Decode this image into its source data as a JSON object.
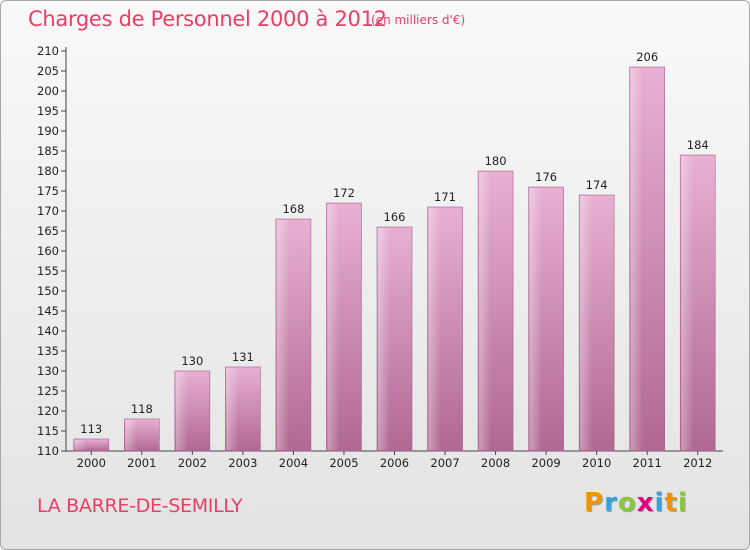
{
  "title": "Charges de Personnel 2000 à 2012",
  "subtitle": "(en milliers d'€)",
  "city": "LA BARRE-DE-SEMILLY",
  "logo": {
    "letters": [
      "P",
      "r",
      "o",
      "x",
      "i",
      "t",
      "i"
    ],
    "colors": [
      "#f39200",
      "#3aa0d8",
      "#8cc63f",
      "#e5007e",
      "#3aa0d8",
      "#f39200",
      "#8cc63f"
    ]
  },
  "colors": {
    "bar": "#d98fbd",
    "bar_light": "#e8b0d3",
    "bar_dark": "#b06892",
    "accent": "#ea3e64"
  },
  "chart_data": {
    "type": "bar",
    "title": "Charges de Personnel 2000 à 2012",
    "categories": [
      "2000",
      "2001",
      "2002",
      "2003",
      "2004",
      "2005",
      "2006",
      "2007",
      "2008",
      "2009",
      "2010",
      "2011",
      "2012"
    ],
    "values": [
      113,
      118,
      130,
      131,
      168,
      172,
      166,
      171,
      180,
      176,
      174,
      206,
      184
    ],
    "ylim": [
      110,
      210
    ],
    "ytick_step": 5,
    "grid": false,
    "legend": "none"
  }
}
